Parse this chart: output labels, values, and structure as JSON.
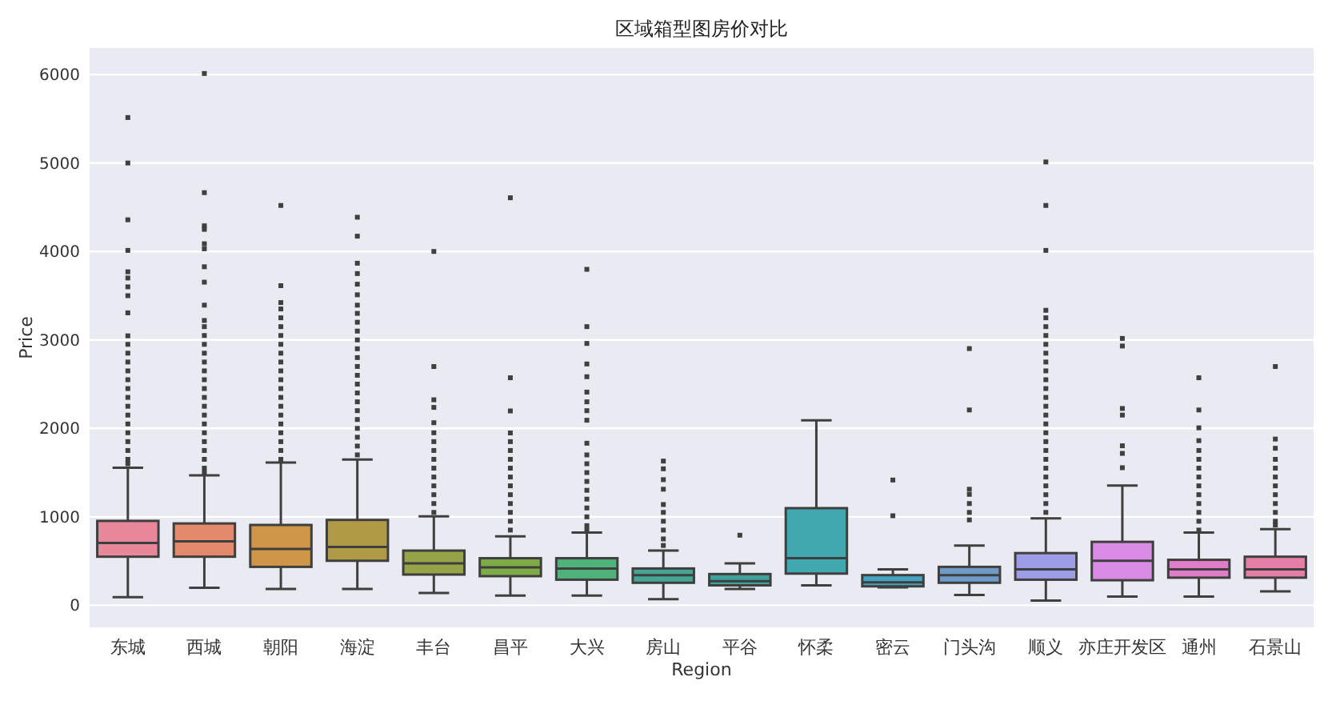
{
  "chart_data": {
    "type": "box",
    "title": "区域箱型图房价对比",
    "xlabel": "Region",
    "ylabel": "Price",
    "categories": [
      "东城",
      "西城",
      "朝阳",
      "海淀",
      "丰台",
      "昌平",
      "大兴",
      "房山",
      "平谷",
      "怀柔",
      "密云",
      "门头沟",
      "顺义",
      "亦庄开发区",
      "通州",
      "石景山"
    ],
    "colors": [
      "#e8869a",
      "#e48a6c",
      "#cf9548",
      "#b09a45",
      "#97a446",
      "#7fab46",
      "#4fb27a",
      "#46a696",
      "#3fa39a",
      "#42a8b0",
      "#46a4be",
      "#6f9bc8",
      "#9d9ce6",
      "#d98be6",
      "#e07cc8",
      "#e57fa8"
    ],
    "boxes": [
      {
        "low": 92,
        "q1": 549,
        "median": 705,
        "q3": 954,
        "high": 1555,
        "outliers": [
          5514,
          5000,
          4358,
          4012,
          3770,
          3700,
          3600,
          3500,
          3306,
          3046,
          2950,
          2850,
          2750,
          2650,
          2550,
          2450,
          2350,
          2250,
          2150,
          2050,
          1950,
          1850,
          1750,
          1650,
          1600
        ]
      },
      {
        "low": 197,
        "q1": 549,
        "median": 723,
        "q3": 925,
        "high": 1468,
        "outliers": [
          6012,
          4665,
          4290,
          4250,
          4087,
          4030,
          3827,
          3653,
          3393,
          3220,
          3150,
          3050,
          2950,
          2850,
          2750,
          2650,
          2550,
          2450,
          2350,
          2250,
          2150,
          2050,
          1950,
          1850,
          1750,
          1650,
          1550,
          1500
        ]
      },
      {
        "low": 185,
        "q1": 434,
        "median": 636,
        "q3": 908,
        "high": 1613,
        "outliers": [
          4520,
          3613,
          3422,
          3350,
          3250,
          3150,
          3050,
          2950,
          2850,
          2750,
          2650,
          2550,
          2450,
          2350,
          2250,
          2150,
          2050,
          1950,
          1850,
          1750,
          1650
        ]
      },
      {
        "low": 185,
        "q1": 503,
        "median": 659,
        "q3": 965,
        "high": 1647,
        "outliers": [
          4387,
          4173,
          3867,
          3750,
          3630,
          3510,
          3393,
          3300,
          3200,
          3100,
          3000,
          2900,
          2800,
          2700,
          2600,
          2500,
          2400,
          2300,
          2200,
          2100,
          2000,
          1900,
          1800,
          1700
        ]
      },
      {
        "low": 139,
        "q1": 347,
        "median": 474,
        "q3": 618,
        "high": 1006,
        "outliers": [
          4000,
          2699,
          2323,
          2237,
          2064,
          1950,
          1850,
          1750,
          1650,
          1550,
          1450,
          1350,
          1250,
          1150,
          1050
        ]
      },
      {
        "low": 110,
        "q1": 329,
        "median": 428,
        "q3": 532,
        "high": 780,
        "outliers": [
          4607,
          2572,
          2197,
          1948,
          1850,
          1750,
          1650,
          1550,
          1450,
          1350,
          1250,
          1150,
          1050,
          950,
          850
        ]
      },
      {
        "low": 110,
        "q1": 289,
        "median": 416,
        "q3": 532,
        "high": 821,
        "outliers": [
          3798,
          3150,
          2960,
          2728,
          2584,
          2410,
          2300,
          2200,
          2092,
          1832,
          1700,
          1600,
          1500,
          1400,
          1300,
          1200,
          1100,
          1000,
          900,
          850
        ]
      },
      {
        "low": 69,
        "q1": 254,
        "median": 341,
        "q3": 416,
        "high": 618,
        "outliers": [
          1630,
          1543,
          1420,
          1312,
          1139,
          1050,
          950,
          850,
          750,
          676
        ]
      },
      {
        "low": 185,
        "q1": 225,
        "median": 272,
        "q3": 353,
        "high": 474,
        "outliers": [
          792
        ]
      },
      {
        "low": 225,
        "q1": 358,
        "median": 532,
        "q3": 1098,
        "high": 2092
      },
      {
        "low": 202,
        "q1": 214,
        "median": 260,
        "q3": 341,
        "high": 405,
        "outliers": [
          1416,
          1012
        ]
      },
      {
        "low": 116,
        "q1": 254,
        "median": 341,
        "q3": 434,
        "high": 676,
        "outliers": [
          2902,
          2208,
          1312,
          1254,
          1150,
          1050,
          965
        ]
      },
      {
        "low": 52,
        "q1": 289,
        "median": 405,
        "q3": 590,
        "high": 983,
        "outliers": [
          5012,
          4520,
          4012,
          3335,
          3250,
          3150,
          3050,
          2950,
          2850,
          2750,
          2650,
          2550,
          2450,
          2350,
          2250,
          2150,
          2050,
          1950,
          1850,
          1750,
          1650,
          1550,
          1450,
          1350,
          1250,
          1150,
          1050
        ]
      },
      {
        "low": 98,
        "q1": 283,
        "median": 503,
        "q3": 717,
        "high": 1353,
        "outliers": [
          3017,
          2931,
          2225,
          2150,
          1803,
          1717,
          1555
        ]
      },
      {
        "low": 98,
        "q1": 312,
        "median": 405,
        "q3": 514,
        "high": 821,
        "outliers": [
          2572,
          2208,
          2006,
          1861,
          1750,
          1650,
          1550,
          1450,
          1350,
          1250,
          1150,
          1050,
          950,
          850
        ]
      },
      {
        "low": 156,
        "q1": 312,
        "median": 405,
        "q3": 549,
        "high": 861,
        "outliers": [
          2699,
          1879,
          1775,
          1650,
          1550,
          1450,
          1350,
          1250,
          1150,
          1050,
          950,
          907
        ]
      }
    ],
    "ylim": [
      -250,
      6300
    ],
    "yticks": [
      0,
      1000,
      2000,
      3000,
      4000,
      5000,
      6000
    ],
    "grid": "y"
  }
}
